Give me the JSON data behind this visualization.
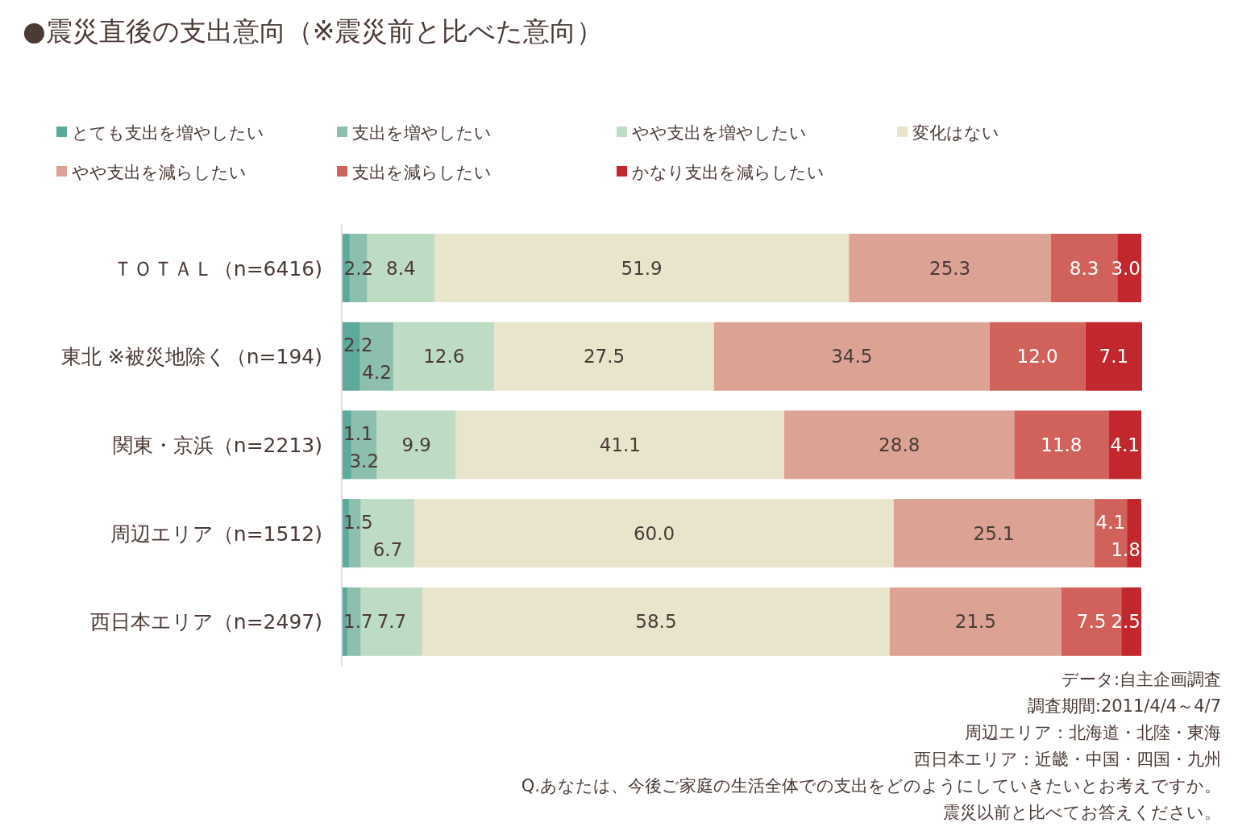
{
  "chart_data": {
    "type": "bar",
    "orientation": "horizontal",
    "stacked": true,
    "title": "●震災直後の支出意向（※震災前と比べた意向）",
    "categories": [
      "ＴＯＴＡＬ（n=6416)",
      "東北 ※被災地除く（n=194)",
      "関東・京浜（n=2213)",
      "周辺エリア（n=1512)",
      "西日本エリア（n=2497)"
    ],
    "series": [
      {
        "name": "とても支出を増やしたい",
        "color": "#5baa9c",
        "values": [
          0.9,
          2.2,
          1.1,
          0.8,
          0.6
        ],
        "value_labels": [
          null,
          "2.2",
          "1.1",
          null,
          null
        ]
      },
      {
        "name": "支出を増やしたい",
        "color": "#8dbfae",
        "values": [
          2.2,
          4.2,
          3.2,
          1.5,
          1.7
        ],
        "value_labels": [
          "2.2",
          "4.2",
          "3.2",
          "1.5",
          "1.7"
        ]
      },
      {
        "name": "やや支出を増やしたい",
        "color": "#bddcc3",
        "values": [
          8.4,
          12.6,
          9.9,
          6.7,
          7.7
        ],
        "value_labels": [
          "8.4",
          "12.6",
          "9.9",
          "6.7",
          "7.7"
        ]
      },
      {
        "name": "変化はない",
        "color": "#e9e4cc",
        "values": [
          51.9,
          27.5,
          41.1,
          60.0,
          58.5
        ],
        "value_labels": [
          "51.9",
          "27.5",
          "41.1",
          "60.0",
          "58.5"
        ]
      },
      {
        "name": "やや支出を減らしたい",
        "color": "#dca395",
        "values": [
          25.3,
          34.5,
          28.8,
          25.1,
          21.5
        ],
        "value_labels": [
          "25.3",
          "34.5",
          "28.8",
          "25.1",
          "21.5"
        ]
      },
      {
        "name": "支出を減らしたい",
        "color": "#d0625b",
        "values": [
          8.3,
          12.0,
          11.8,
          4.1,
          7.5
        ],
        "value_labels": [
          "8.3",
          "12.0",
          "11.8",
          "4.1",
          "7.5"
        ]
      },
      {
        "name": "かなり支出を減らしたい",
        "color": "#c1272d",
        "values": [
          3.0,
          7.1,
          4.1,
          1.8,
          2.5
        ],
        "value_labels": [
          "3.0",
          "7.1",
          "4.1",
          "1.8",
          "2.5"
        ]
      }
    ],
    "xlim": [
      0,
      100
    ],
    "tick_labels": "y",
    "legend": "top left",
    "annotations": [
      "データ:自主企画調査",
      "調査期間:2011/4/4～4/7",
      "周辺エリア：北海道・北陸・東海",
      "西日本エリア：近畿・中国・四国・九州",
      "Q.あなたは、今後ご家庭の生活全体での支出をどのようにしていきたいとお考えですか。",
      "震災以前と比べてお答えください。"
    ]
  }
}
